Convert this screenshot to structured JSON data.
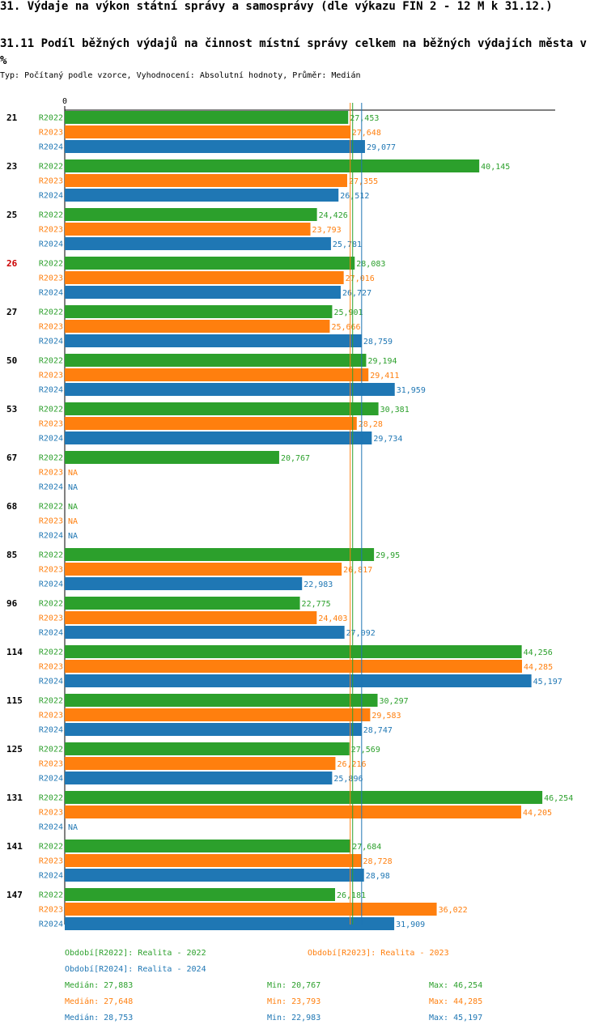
{
  "header": {
    "title": "31. Výdaje na výkon státní správy a samosprávy (dle výkazu FIN 2 - 12 M k 31.12.)",
    "subtitle": "31.11 Podíl běžných výdajů na činnost místní správy celkem na běžných výdajích města v %",
    "meta": "Typ: Počítaný podle vzorce, Vyhodnocení: Absolutní hodnoty, Průměr: Medián"
  },
  "colors": {
    "R2022": "#2ca02c",
    "R2023": "#ff7f0e",
    "R2024": "#1f77b4",
    "highlight": "#cc0000"
  },
  "chart_data": {
    "type": "bar",
    "orientation": "horizontal",
    "axis_zero_label": "0",
    "xlim": [
      0,
      47.5
    ],
    "na_label": "NA",
    "highlight_category": "26",
    "categories": [
      "21",
      "23",
      "25",
      "26",
      "27",
      "50",
      "53",
      "67",
      "68",
      "85",
      "96",
      "114",
      "115",
      "125",
      "131",
      "141",
      "147"
    ],
    "series": [
      {
        "name": "R2022",
        "values": [
          27.453,
          40.145,
          24.426,
          28.083,
          25.901,
          29.194,
          30.381,
          20.767,
          null,
          29.95,
          22.775,
          44.256,
          30.297,
          27.569,
          46.254,
          27.684,
          26.181
        ],
        "labels": [
          "27,453",
          "40,145",
          "24,426",
          "28,083",
          "25,901",
          "29,194",
          "30,381",
          "20,767",
          "NA",
          "29,95",
          "22,775",
          "44,256",
          "30,297",
          "27,569",
          "46,254",
          "27,684",
          "26,181"
        ]
      },
      {
        "name": "R2023",
        "values": [
          27.648,
          27.355,
          23.793,
          27.016,
          25.666,
          29.411,
          28.28,
          null,
          null,
          26.817,
          24.403,
          44.285,
          29.583,
          26.216,
          44.205,
          28.728,
          36.022
        ],
        "labels": [
          "27,648",
          "27,355",
          "23,793",
          "27,016",
          "25,666",
          "29,411",
          "28,28",
          "NA",
          "NA",
          "26,817",
          "24,403",
          "44,285",
          "29,583",
          "26,216",
          "44,205",
          "28,728",
          "36,022"
        ]
      },
      {
        "name": "R2024",
        "values": [
          29.077,
          26.512,
          25.781,
          26.727,
          28.759,
          31.959,
          29.734,
          null,
          null,
          22.983,
          27.092,
          45.197,
          28.747,
          25.896,
          null,
          28.98,
          31.909
        ],
        "labels": [
          "29,077",
          "26,512",
          "25,781",
          "26,727",
          "28,759",
          "31,959",
          "29,734",
          "NA",
          "NA",
          "22,983",
          "27,092",
          "45,197",
          "28,747",
          "25,896",
          "NA",
          "28,98",
          "31,909"
        ]
      }
    ],
    "medians": {
      "R2022": 27.883,
      "R2023": 27.648,
      "R2024": 28.753
    }
  },
  "legend": {
    "items": [
      {
        "series": "R2022",
        "text": "Období[R2022]: Realita - 2022"
      },
      {
        "series": "R2023",
        "text": "Období[R2023]: Realita - 2023"
      },
      {
        "series": "R2024",
        "text": "Období[R2024]: Realita - 2024"
      }
    ],
    "stats": [
      {
        "series": "R2022",
        "median": "Medián: 27,883",
        "min": "Min: 20,767",
        "max": "Max: 46,254"
      },
      {
        "series": "R2023",
        "median": "Medián: 27,648",
        "min": "Min: 23,793",
        "max": "Max: 44,285"
      },
      {
        "series": "R2024",
        "median": "Medián: 28,753",
        "min": "Min: 22,983",
        "max": "Max: 45,197"
      }
    ]
  }
}
